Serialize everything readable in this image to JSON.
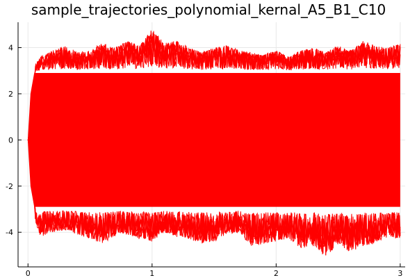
{
  "chart_data": {
    "type": "line",
    "title": "sample_trajectories_polynomial_kernal_A5_B1_C10",
    "xlabel": "",
    "ylabel": "",
    "xlim": [
      -0.08,
      3.04
    ],
    "ylim": [
      -5.5,
      5.1
    ],
    "x_ticks": [
      0,
      1,
      2,
      3
    ],
    "x_tick_labels": [
      "0",
      "1",
      "2",
      "3"
    ],
    "y_ticks": [
      -4,
      -2,
      0,
      2,
      4
    ],
    "y_tick_labels": [
      "-4",
      "-2",
      "0",
      "2",
      "4"
    ],
    "grid": true,
    "legend": "none",
    "series_color": "#ff0000",
    "x_start": 0,
    "x_end": 3,
    "dense_band_upper": 2.9,
    "dense_band_lower": -2.9,
    "envelope_upper": [
      [
        0.0,
        0.2
      ],
      [
        0.02,
        2.0
      ],
      [
        0.05,
        3.2
      ],
      [
        0.1,
        3.6
      ],
      [
        0.2,
        3.9
      ],
      [
        0.3,
        4.1
      ],
      [
        0.4,
        3.8
      ],
      [
        0.5,
        3.9
      ],
      [
        0.6,
        4.2
      ],
      [
        0.7,
        4.0
      ],
      [
        0.8,
        4.3
      ],
      [
        0.9,
        4.1
      ],
      [
        1.0,
        4.8
      ],
      [
        1.1,
        4.2
      ],
      [
        1.2,
        4.3
      ],
      [
        1.3,
        4.0
      ],
      [
        1.4,
        3.8
      ],
      [
        1.5,
        4.0
      ],
      [
        1.6,
        4.1
      ],
      [
        1.7,
        3.9
      ],
      [
        1.8,
        3.8
      ],
      [
        1.9,
        3.7
      ],
      [
        2.0,
        3.9
      ],
      [
        2.1,
        3.6
      ],
      [
        2.2,
        3.9
      ],
      [
        2.3,
        4.0
      ],
      [
        2.4,
        3.8
      ],
      [
        2.5,
        4.1
      ],
      [
        2.6,
        3.9
      ],
      [
        2.7,
        4.3
      ],
      [
        2.8,
        4.1
      ],
      [
        2.9,
        4.0
      ],
      [
        3.0,
        4.2
      ]
    ],
    "envelope_lower": [
      [
        0.0,
        -0.2
      ],
      [
        0.02,
        -2.0
      ],
      [
        0.05,
        -3.4
      ],
      [
        0.1,
        -4.2
      ],
      [
        0.2,
        -4.0
      ],
      [
        0.3,
        -3.9
      ],
      [
        0.4,
        -4.1
      ],
      [
        0.5,
        -4.3
      ],
      [
        0.6,
        -4.5
      ],
      [
        0.7,
        -4.2
      ],
      [
        0.8,
        -4.1
      ],
      [
        0.9,
        -4.3
      ],
      [
        1.0,
        -4.4
      ],
      [
        1.1,
        -4.0
      ],
      [
        1.2,
        -4.2
      ],
      [
        1.3,
        -4.3
      ],
      [
        1.4,
        -4.5
      ],
      [
        1.5,
        -4.4
      ],
      [
        1.6,
        -4.1
      ],
      [
        1.7,
        -4.0
      ],
      [
        1.8,
        -4.6
      ],
      [
        1.9,
        -4.5
      ],
      [
        2.0,
        -4.4
      ],
      [
        2.1,
        -4.3
      ],
      [
        2.2,
        -4.7
      ],
      [
        2.3,
        -4.6
      ],
      [
        2.4,
        -5.1
      ],
      [
        2.5,
        -4.5
      ],
      [
        2.6,
        -4.9
      ],
      [
        2.7,
        -4.6
      ],
      [
        2.8,
        -4.5
      ],
      [
        2.9,
        -4.2
      ],
      [
        3.0,
        -4.3
      ]
    ]
  }
}
